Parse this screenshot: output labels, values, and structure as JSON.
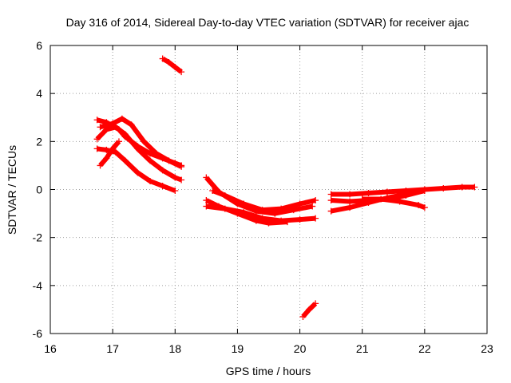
{
  "chart_data": {
    "type": "scatter",
    "title": "Day 316 of 2014, Sidereal Day-to-day VTEC variation (SDTVAR) for receiver ajac",
    "xlabel": "GPS time / hours",
    "ylabel": "SDTVAR / TECUs",
    "xlim": [
      16,
      23
    ],
    "ylim": [
      -6,
      6
    ],
    "x_ticks": [
      "16",
      "17",
      "18",
      "19",
      "20",
      "21",
      "22",
      "23"
    ],
    "y_ticks": [
      "6",
      "4",
      "2",
      "0",
      "-2",
      "-4",
      "-6"
    ],
    "grid": true,
    "marker": "+",
    "color": "#ff0000",
    "series": [
      {
        "name": "arc-1",
        "x": [
          17.8,
          17.9,
          18.0,
          18.1
        ],
        "y": [
          5.45,
          5.3,
          5.1,
          4.9
        ]
      },
      {
        "name": "arc-2",
        "x": [
          16.75,
          16.9,
          17.1,
          17.2,
          17.4,
          17.6,
          17.8,
          18.0,
          18.1
        ],
        "y": [
          2.9,
          2.8,
          2.5,
          2.2,
          1.8,
          1.5,
          1.3,
          1.1,
          1.0
        ]
      },
      {
        "name": "arc-3",
        "x": [
          16.8,
          17.0,
          17.15,
          17.3,
          17.5,
          17.7,
          17.9,
          18.1
        ],
        "y": [
          2.6,
          2.75,
          2.95,
          2.7,
          2.0,
          1.5,
          1.2,
          0.95
        ]
      },
      {
        "name": "arc-4",
        "x": [
          16.75,
          16.9,
          17.05,
          17.2,
          17.4,
          17.6,
          17.8,
          18.0,
          18.1
        ],
        "y": [
          2.1,
          2.5,
          2.6,
          2.3,
          1.7,
          1.2,
          0.8,
          0.5,
          0.4
        ]
      },
      {
        "name": "arc-5",
        "x": [
          16.75,
          16.9,
          17.05,
          17.2,
          17.4,
          17.6,
          17.8,
          18.0
        ],
        "y": [
          1.7,
          1.65,
          1.55,
          1.2,
          0.7,
          0.35,
          0.15,
          -0.05
        ]
      },
      {
        "name": "arc-6",
        "x": [
          16.8,
          16.9,
          17.0,
          17.1
        ],
        "y": [
          1.0,
          1.3,
          1.7,
          2.0
        ]
      },
      {
        "name": "arc-7",
        "x": [
          18.5,
          18.7,
          19.0,
          19.3,
          19.6,
          19.9,
          20.2
        ],
        "y": [
          0.5,
          -0.1,
          -0.6,
          -0.9,
          -1.0,
          -0.85,
          -0.7
        ]
      },
      {
        "name": "arc-8",
        "x": [
          18.6,
          18.8,
          19.1,
          19.4,
          19.7,
          20.0,
          20.25
        ],
        "y": [
          -0.05,
          -0.25,
          -0.6,
          -0.85,
          -0.8,
          -0.6,
          -0.45
        ]
      },
      {
        "name": "arc-9",
        "x": [
          18.5,
          18.8,
          19.1,
          19.4,
          19.7,
          20.0,
          20.25
        ],
        "y": [
          -0.7,
          -0.8,
          -0.95,
          -1.2,
          -1.3,
          -1.25,
          -1.2
        ]
      },
      {
        "name": "arc-10",
        "x": [
          18.5,
          18.7,
          19.0,
          19.3,
          19.5,
          19.8
        ],
        "y": [
          -0.45,
          -0.7,
          -1.0,
          -1.3,
          -1.4,
          -1.35
        ]
      },
      {
        "name": "arc-11",
        "x": [
          20.05,
          20.15,
          20.25
        ],
        "y": [
          -5.3,
          -5.0,
          -4.75
        ]
      },
      {
        "name": "arc-12",
        "x": [
          20.5,
          20.8,
          21.1,
          21.4,
          21.7,
          22.0,
          22.3,
          22.6,
          22.8
        ],
        "y": [
          -0.2,
          -0.2,
          -0.15,
          -0.1,
          -0.05,
          0.0,
          0.05,
          0.1,
          0.1
        ]
      },
      {
        "name": "arc-13",
        "x": [
          20.5,
          20.8,
          21.1,
          21.4,
          21.7,
          22.0
        ],
        "y": [
          -0.45,
          -0.5,
          -0.45,
          -0.4,
          -0.25,
          -0.05
        ]
      },
      {
        "name": "arc-14",
        "x": [
          20.5,
          20.8,
          21.1,
          21.4,
          21.7,
          22.0
        ],
        "y": [
          -0.9,
          -0.75,
          -0.55,
          -0.35,
          -0.2,
          -0.05
        ]
      },
      {
        "name": "arc-15",
        "x": [
          21.0,
          21.3,
          21.6,
          21.9,
          22.0
        ],
        "y": [
          -0.4,
          -0.4,
          -0.5,
          -0.65,
          -0.75
        ]
      }
    ]
  }
}
